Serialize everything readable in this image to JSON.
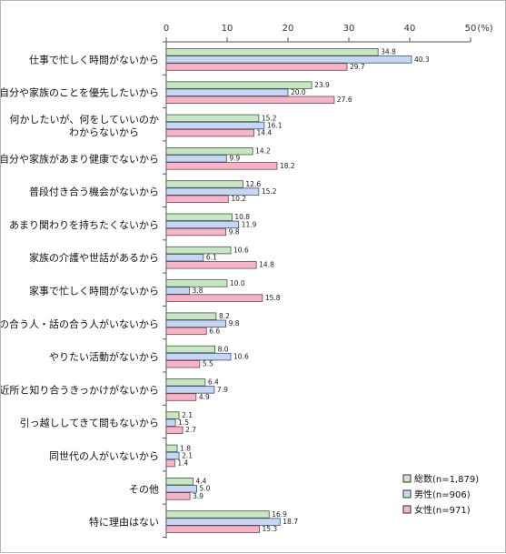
{
  "chart_data": {
    "type": "bar",
    "orientation": "horizontal",
    "unit_label": "(%)",
    "xlim": [
      0,
      50
    ],
    "xticks": [
      0,
      10,
      20,
      30,
      40,
      50
    ],
    "legend_position": "bottom-right",
    "categories": [
      [
        "仕事で忙しく時間がないから"
      ],
      [
        "自分や家族のことを優先したいから"
      ],
      [
        "何かしたいが、何をしていいのか",
        "わからないから"
      ],
      [
        "自分や家族があまり健康でないから"
      ],
      [
        "普段付き合う機会がないから"
      ],
      [
        "あまり関わりを持ちたくないから"
      ],
      [
        "家族の介護や世話があるから"
      ],
      [
        "家事で忙しく時間がないから"
      ],
      [
        "気の合う人・話の合う人がいないから"
      ],
      [
        "やりたい活動がないから"
      ],
      [
        "ご近所と知り合うきっかけがないから"
      ],
      [
        "引っ越ししてきて間もないから"
      ],
      [
        "同世代の人がいないから"
      ],
      [
        "その他"
      ],
      [
        "特に理由はない"
      ]
    ],
    "series": [
      {
        "name": "総数(n=1,879)",
        "color": "#c8e6c3",
        "values": [
          34.8,
          23.9,
          15.2,
          14.2,
          12.6,
          10.8,
          10.6,
          10.0,
          8.2,
          8.0,
          6.4,
          2.1,
          1.8,
          4.4,
          16.9
        ]
      },
      {
        "name": "男性(n=906)",
        "color": "#c7d7f1",
        "values": [
          40.3,
          20.0,
          16.1,
          9.9,
          15.2,
          11.9,
          6.1,
          3.8,
          9.8,
          10.6,
          7.9,
          1.5,
          2.1,
          5.0,
          18.7
        ]
      },
      {
        "name": "女性(n=971)",
        "color": "#f3b6c6",
        "values": [
          29.7,
          27.6,
          14.4,
          18.2,
          10.2,
          9.8,
          14.8,
          15.8,
          6.6,
          5.5,
          4.9,
          2.7,
          1.4,
          3.9,
          15.3
        ]
      }
    ]
  }
}
